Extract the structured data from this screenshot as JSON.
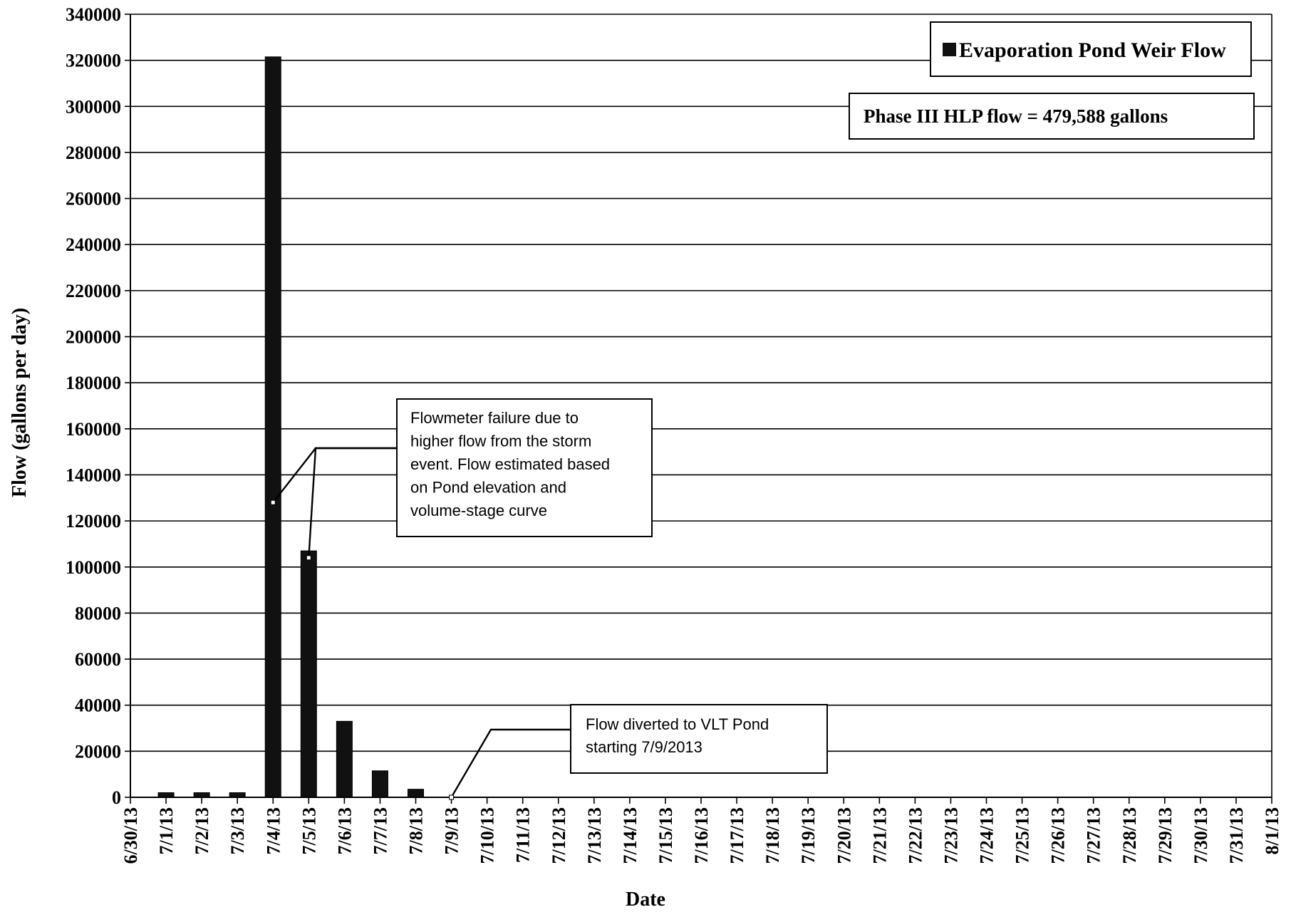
{
  "chart_data": {
    "type": "bar",
    "xlabel": "Date",
    "ylabel": "Flow (gallons per day)",
    "ylim": [
      0,
      340000
    ],
    "y_ticks": [
      0,
      20000,
      40000,
      60000,
      80000,
      100000,
      120000,
      140000,
      160000,
      180000,
      200000,
      220000,
      240000,
      260000,
      280000,
      300000,
      320000,
      340000
    ],
    "categories": [
      "6/30/13",
      "7/1/13",
      "7/2/13",
      "7/3/13",
      "7/4/13",
      "7/5/13",
      "7/6/13",
      "7/7/13",
      "7/8/13",
      "7/9/13",
      "7/10/13",
      "7/11/13",
      "7/12/13",
      "7/13/13",
      "7/14/13",
      "7/15/13",
      "7/16/13",
      "7/17/13",
      "7/18/13",
      "7/19/13",
      "7/20/13",
      "7/21/13",
      "7/22/13",
      "7/23/13",
      "7/24/13",
      "7/25/13",
      "7/26/13",
      "7/27/13",
      "7/28/13",
      "7/29/13",
      "7/30/13",
      "7/31/13",
      "8/1/13"
    ],
    "series": [
      {
        "name": "Evaporation Pond Weir Flow",
        "values": [
          null,
          2000,
          2000,
          2000,
          321500,
          107000,
          33000,
          11500,
          3500,
          0,
          0,
          0,
          0,
          0,
          0,
          0,
          0,
          0,
          0,
          0,
          0,
          0,
          0,
          0,
          0,
          0,
          0,
          0,
          0,
          0,
          0,
          0,
          null
        ]
      }
    ],
    "grid": true,
    "legend_position": "top-right",
    "bar_color": "#111111",
    "note": "Phase III HLP flow = 479,588 gallons",
    "annotations": [
      {
        "text": [
          "Flowmeter failure due to",
          "higher flow from the storm",
          "event. Flow estimated based",
          "on Pond elevation and",
          "volume-stage curve"
        ],
        "targets": [
          {
            "category": "7/4/13",
            "value": 128000
          },
          {
            "category": "7/5/13",
            "value": 104000
          }
        ]
      },
      {
        "text": [
          "Flow diverted to VLT Pond",
          "starting 7/9/2013"
        ],
        "targets": [
          {
            "category": "7/9/13",
            "value": 0
          }
        ]
      }
    ]
  }
}
